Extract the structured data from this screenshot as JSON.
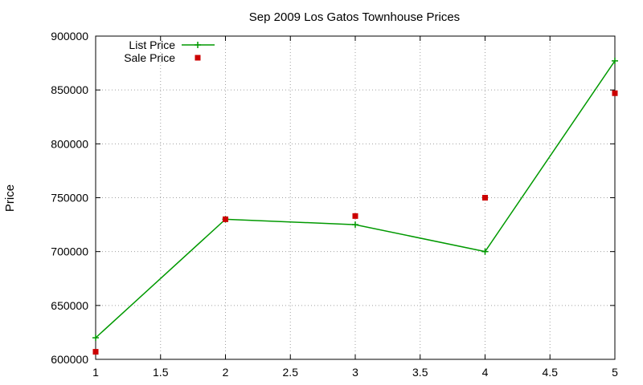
{
  "chart_data": {
    "type": "line",
    "title": "Sep 2009 Los Gatos Townhouse Prices",
    "xlabel": "",
    "ylabel": "Price",
    "xlim": [
      1,
      5
    ],
    "ylim": [
      600000,
      900000
    ],
    "x_ticks": [
      "1",
      "1.5",
      "2",
      "2.5",
      "3",
      "3.5",
      "4",
      "4.5",
      "5"
    ],
    "y_ticks": [
      "600000",
      "650000",
      "700000",
      "750000",
      "800000",
      "850000",
      "900000"
    ],
    "grid": true,
    "legend_position": "top-left",
    "x": [
      1,
      2,
      3,
      4,
      5
    ],
    "series": [
      {
        "name": "List Price",
        "style": "linespoints",
        "marker": "plus",
        "color": "#009900",
        "values": [
          620000,
          730000,
          725000,
          700000,
          877000
        ]
      },
      {
        "name": "Sale Price",
        "style": "points",
        "marker": "square",
        "color": "#cc0000",
        "values": [
          607000,
          730000,
          733000,
          750000,
          847000
        ]
      }
    ]
  }
}
